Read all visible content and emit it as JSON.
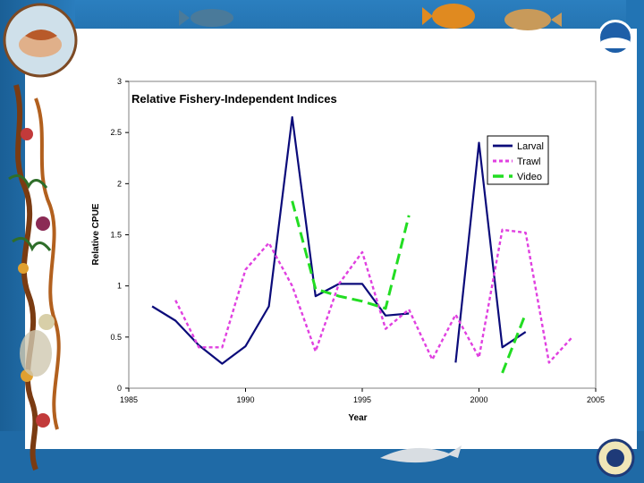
{
  "chart_data": {
    "type": "line",
    "title": "Relative Fishery-Independent Indices",
    "xlabel": "Year",
    "ylabel": "Relative CPUE",
    "xlim": [
      1985,
      2005
    ],
    "ylim": [
      0,
      3
    ],
    "x_ticks": [
      "1985",
      "1990",
      "1995",
      "2000",
      "2005"
    ],
    "y_ticks": [
      "0",
      "0.5",
      "1",
      "1.5",
      "2",
      "2.5",
      "3"
    ],
    "legend_position": "top-right",
    "grid": false,
    "series": [
      {
        "name": "Larval",
        "color": "#0b0b7a",
        "style": "solid",
        "segments": [
          [
            [
              1986,
              0.8
            ],
            [
              1987,
              0.66
            ],
            [
              1988,
              0.42
            ],
            [
              1989,
              0.24
            ],
            [
              1990,
              0.41
            ],
            [
              1991,
              0.8
            ],
            [
              1992,
              2.65
            ],
            [
              1993,
              0.9
            ],
            [
              1994,
              1.02
            ],
            [
              1995,
              1.02
            ],
            [
              1996,
              0.71
            ],
            [
              1997,
              0.73
            ]
          ],
          [
            [
              1999,
              0.25
            ],
            [
              2000,
              2.4
            ],
            [
              2001,
              0.4
            ],
            [
              2002,
              0.55
            ]
          ]
        ]
      },
      {
        "name": "Trawl",
        "color": "#e040e0",
        "style": "dotted",
        "segments": [
          [
            [
              1987,
              0.86
            ],
            [
              1988,
              0.4
            ],
            [
              1989,
              0.4
            ],
            [
              1990,
              1.16
            ],
            [
              1991,
              1.42
            ],
            [
              1992,
              1.0
            ],
            [
              1993,
              0.36
            ],
            [
              1994,
              1.02
            ],
            [
              1995,
              1.33
            ],
            [
              1996,
              0.58
            ],
            [
              1997,
              0.77
            ],
            [
              1998,
              0.28
            ],
            [
              1999,
              0.72
            ],
            [
              2000,
              0.3
            ],
            [
              2001,
              1.55
            ],
            [
              2002,
              1.52
            ],
            [
              2003,
              0.25
            ],
            [
              2004,
              0.5
            ]
          ]
        ]
      },
      {
        "name": "Video",
        "color": "#22dd22",
        "style": "dashed",
        "segments": [
          [
            [
              1992,
              1.83
            ],
            [
              1993,
              0.97
            ],
            [
              1994,
              0.9
            ],
            [
              1995,
              0.85
            ],
            [
              1996,
              0.78
            ],
            [
              1997,
              1.69
            ]
          ],
          [
            [
              2001,
              0.15
            ],
            [
              2002,
              0.73
            ]
          ]
        ]
      }
    ]
  },
  "decor": {
    "logo_left": "hands-holding-fish-logo",
    "logo_noaa": "noaa-logo",
    "seal_commerce": "commerce-seal",
    "fish_icons": [
      "fish-icon",
      "fish-icon",
      "fish-icon"
    ],
    "dolphin": "dolphin-icon",
    "seaweed": "seaweed-border"
  }
}
